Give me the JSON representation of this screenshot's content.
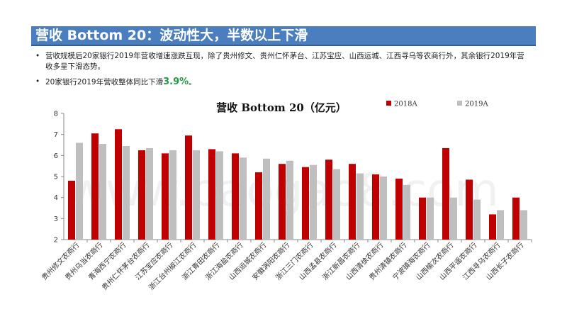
{
  "header": {
    "title": "营收 Bottom 20：波动性大，半数以上下滑"
  },
  "bullets": [
    {
      "text": "营收规模后20家银行2019年营收增速涨跌互现，除了贵州修文、贵州仁怀茅台、江苏宝应、山西运城、江西寻乌等农商行外，其余银行2019年营收多呈下滑态势。"
    },
    {
      "prefix": "20家银行2019年营收整体同比下滑",
      "highlight": "3.9%",
      "suffix": "。"
    }
  ],
  "watermark": "www.baogao8.com",
  "colors": {
    "series_2018": "#c00000",
    "series_2019": "#bfbfbf",
    "title_bar": "#4a7ebf"
  },
  "chart_data": {
    "type": "bar",
    "title": "营收 Bottom 20（亿元）",
    "xlabel": "",
    "ylabel": "",
    "ylim": [
      2,
      8
    ],
    "yticks": [
      2,
      3,
      4,
      5,
      6,
      7,
      8
    ],
    "legend_position": "top-right",
    "categories": [
      "贵州修文农商行",
      "贵州乌当农商行",
      "青海西宁农商行",
      "贵州仁怀茅台农商行",
      "江苏宝应农商行",
      "浙江台州椒江农商行",
      "浙江青田农商行",
      "浙江海盐农商行",
      "山西运城农商行",
      "安徽涡阳农商行",
      "浙江三门农商行",
      "山西孟县农商行",
      "浙江新昌农商行",
      "山西清徐农商行",
      "贵州清镇农商行",
      "宁波镇海农商行",
      "山西榆次农商行",
      "山西平遥农商行",
      "江西寻乌农商行",
      "山西长子农商行"
    ],
    "series": [
      {
        "name": "2018A",
        "values": [
          4.8,
          7.05,
          7.25,
          6.25,
          6.1,
          6.95,
          6.3,
          6.1,
          5.2,
          5.6,
          5.45,
          5.8,
          5.6,
          5.1,
          4.9,
          4.0,
          6.35,
          4.85,
          3.2,
          4.0
        ]
      },
      {
        "name": "2019A",
        "values": [
          6.6,
          6.55,
          6.45,
          6.35,
          6.25,
          6.25,
          6.2,
          5.9,
          5.85,
          5.75,
          5.55,
          5.35,
          5.15,
          5.0,
          4.6,
          4.0,
          4.0,
          3.9,
          3.4,
          3.4
        ]
      }
    ]
  }
}
